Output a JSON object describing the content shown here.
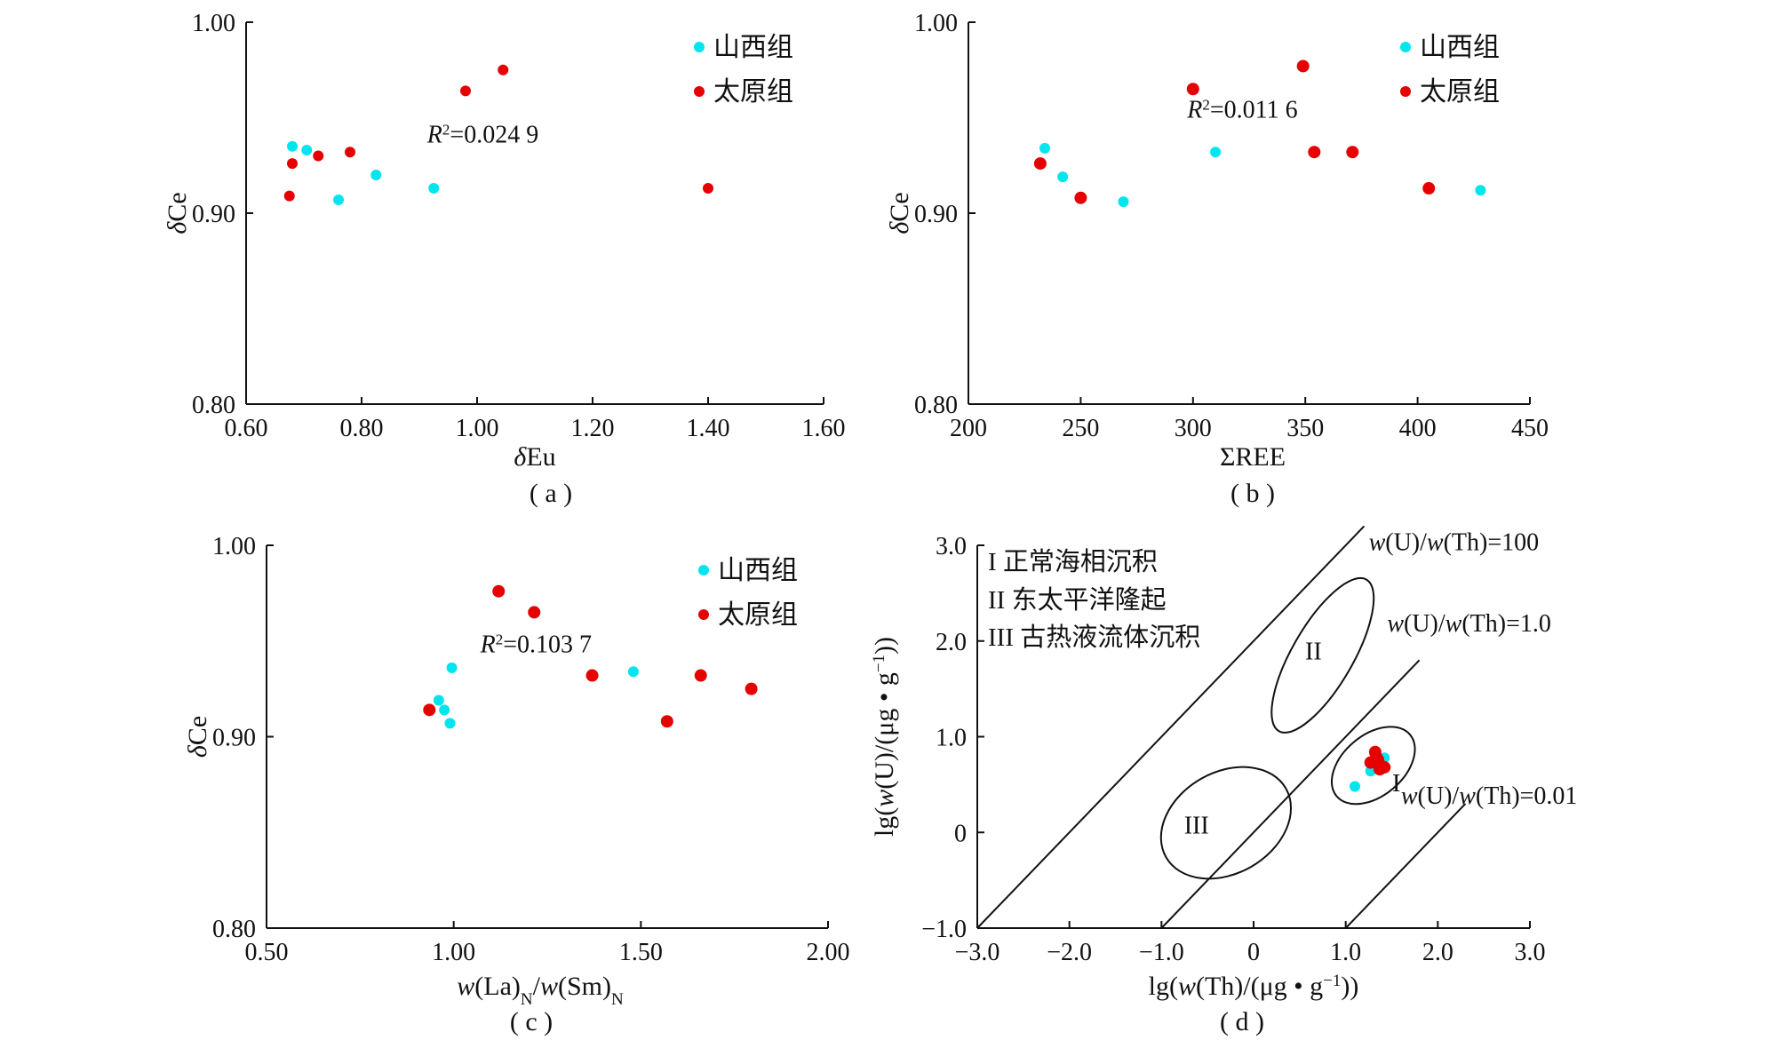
{
  "colors": {
    "shanxi": "#00e5ee",
    "taiyuan": "#e60000",
    "axis": "#111111"
  },
  "legend": {
    "shanxi": "山西组",
    "taiyuan": "太原组"
  },
  "chart_data": [
    {
      "id": "a",
      "type": "scatter",
      "caption": "( a )",
      "xlabel_parts": [
        {
          "t": "δ",
          "i": true
        },
        {
          "t": "Eu"
        }
      ],
      "ylabel_parts": [
        {
          "t": "δ",
          "i": true
        },
        {
          "t": "Ce"
        }
      ],
      "xlim": [
        0.6,
        1.6
      ],
      "ylim": [
        0.8,
        1.0
      ],
      "xticks": [
        "0.60",
        "0.80",
        "1.00",
        "1.20",
        "1.40",
        "1.60"
      ],
      "yticks": [
        "0.80",
        "0.90",
        "1.00"
      ],
      "annotation_parts": [
        {
          "t": "R",
          "i": true
        },
        {
          "t": "2",
          "sup": true
        },
        {
          "t": "=0.024 9"
        }
      ],
      "annotation_at": [
        1.01,
        0.937
      ],
      "legend": true,
      "series": [
        {
          "name": "山西组",
          "r": 6,
          "points": [
            [
              0.68,
              0.935
            ],
            [
              0.705,
              0.933
            ],
            [
              0.76,
              0.907
            ],
            [
              0.825,
              0.92
            ],
            [
              0.925,
              0.913
            ]
          ]
        },
        {
          "name": "太原组",
          "r": 6,
          "points": [
            [
              0.675,
              0.909
            ],
            [
              0.68,
              0.926
            ],
            [
              0.725,
              0.93
            ],
            [
              0.78,
              0.932
            ],
            [
              0.98,
              0.964
            ],
            [
              1.045,
              0.975
            ],
            [
              1.4,
              0.913
            ]
          ]
        }
      ]
    },
    {
      "id": "b",
      "type": "scatter",
      "caption": "( b )",
      "xlabel_parts": [
        {
          "t": "ΣREE"
        }
      ],
      "ylabel_parts": [
        {
          "t": "δ",
          "i": true
        },
        {
          "t": "Ce"
        }
      ],
      "xlim": [
        200,
        450
      ],
      "ylim": [
        0.8,
        1.0
      ],
      "xticks": [
        "200",
        "250",
        "300",
        "350",
        "400",
        "450"
      ],
      "yticks": [
        "0.80",
        "0.90",
        "1.00"
      ],
      "annotation_parts": [
        {
          "t": "R",
          "i": true
        },
        {
          "t": "2",
          "sup": true
        },
        {
          "t": "=0.011 6"
        }
      ],
      "annotation_at": [
        322,
        0.95
      ],
      "legend": true,
      "series": [
        {
          "name": "山西组",
          "r": 6,
          "points": [
            [
              234,
              0.934
            ],
            [
              242,
              0.919
            ],
            [
              269,
              0.906
            ],
            [
              310,
              0.932
            ],
            [
              428,
              0.912
            ]
          ]
        },
        {
          "name": "太原组",
          "r": 7,
          "points": [
            [
              232,
              0.926
            ],
            [
              250,
              0.908
            ],
            [
              300,
              0.965
            ],
            [
              349,
              0.977
            ],
            [
              354,
              0.932
            ],
            [
              371,
              0.932
            ],
            [
              405,
              0.913
            ]
          ]
        }
      ]
    },
    {
      "id": "c",
      "type": "scatter",
      "caption": "( c )",
      "xlabel_parts": [
        {
          "t": "w",
          "i": true
        },
        {
          "t": "(La)"
        },
        {
          "t": "N",
          "sub": true
        },
        {
          "t": "/"
        },
        {
          "t": "w",
          "i": true
        },
        {
          "t": "(Sm)"
        },
        {
          "t": "N",
          "sub": true
        }
      ],
      "ylabel_parts": [
        {
          "t": "δ",
          "i": true
        },
        {
          "t": "Ce"
        }
      ],
      "xlim": [
        0.5,
        2.0
      ],
      "ylim": [
        0.8,
        1.0
      ],
      "xticks": [
        "0.50",
        "1.00",
        "1.50",
        "2.00"
      ],
      "yticks": [
        "0.80",
        "0.90",
        "1.00"
      ],
      "annotation_parts": [
        {
          "t": "R",
          "i": true
        },
        {
          "t": "2",
          "sup": true
        },
        {
          "t": "=0.103 7"
        }
      ],
      "annotation_at": [
        1.22,
        0.944
      ],
      "legend": true,
      "series": [
        {
          "name": "山西组",
          "r": 6,
          "points": [
            [
              0.96,
              0.919
            ],
            [
              0.975,
              0.914
            ],
            [
              0.99,
              0.907
            ],
            [
              0.995,
              0.936
            ],
            [
              1.48,
              0.934
            ]
          ]
        },
        {
          "name": "太原组",
          "r": 7,
          "points": [
            [
              0.935,
              0.914
            ],
            [
              1.12,
              0.976
            ],
            [
              1.215,
              0.965
            ],
            [
              1.37,
              0.932
            ],
            [
              1.57,
              0.908
            ],
            [
              1.66,
              0.932
            ],
            [
              1.795,
              0.925
            ]
          ]
        }
      ]
    },
    {
      "id": "d",
      "type": "scatter",
      "caption": "( d )",
      "xlabel_parts": [
        {
          "t": "lg("
        },
        {
          "t": "w",
          "i": true
        },
        {
          "t": "(Th)/(μg • g"
        },
        {
          "t": "−1",
          "sup": true
        },
        {
          "t": "))"
        }
      ],
      "ylabel_parts": [
        {
          "t": "lg("
        },
        {
          "t": "w",
          "i": true
        },
        {
          "t": "(U)/(μg • g"
        },
        {
          "t": "−1",
          "sup": true
        },
        {
          "t": "))"
        }
      ],
      "xlim": [
        -3,
        3
      ],
      "ylim": [
        -1,
        3
      ],
      "xticks": [
        "−3.0",
        "−2.0",
        "−1.0",
        "0",
        "1.0",
        "2.0",
        "3.0"
      ],
      "yticks": [
        "−1.0",
        "0",
        "1.0",
        "2.0",
        "3.0"
      ],
      "legend": false,
      "key_lines": [
        "I 正常海相沉积",
        "II 东太平洋隆起",
        "III 古热液流体沉积"
      ],
      "ratio_lines": [
        {
          "label_parts": [
            {
              "t": "w",
              "i": true
            },
            {
              "t": "(U)/"
            },
            {
              "t": "w",
              "i": true
            },
            {
              "t": "(Th)=100"
            }
          ],
          "offset": 2,
          "x_range": [
            -3,
            1.2
          ],
          "label_at": [
            1.25,
            2.95
          ]
        },
        {
          "label_parts": [
            {
              "t": "w",
              "i": true
            },
            {
              "t": "(U)/"
            },
            {
              "t": "w",
              "i": true
            },
            {
              "t": "(Th)=1.0"
            }
          ],
          "offset": 0,
          "x_range": [
            -1,
            1.8
          ],
          "label_at": [
            1.45,
            2.1
          ]
        },
        {
          "label_parts": [
            {
              "t": "w",
              "i": true
            },
            {
              "t": "(U)/"
            },
            {
              "t": "w",
              "i": true
            },
            {
              "t": "(Th)=0.01"
            }
          ],
          "offset": -2,
          "x_range": [
            1,
            2.3
          ],
          "label_at": [
            1.6,
            0.3
          ]
        }
      ],
      "regions": [
        {
          "label": "I",
          "center": [
            1.3,
            0.7
          ],
          "rx": 0.52,
          "ry": 0.33,
          "rotate": -40,
          "label_at": [
            1.55,
            0.52
          ]
        },
        {
          "label": "II",
          "center": [
            0.75,
            1.85
          ],
          "rx": 0.95,
          "ry": 0.33,
          "rotate": -60,
          "label_at": [
            0.65,
            1.9
          ]
        },
        {
          "label": "III",
          "center": [
            -0.3,
            0.1
          ],
          "rx": 0.75,
          "ry": 0.55,
          "rotate": -30,
          "label_at": [
            -0.62,
            0.08
          ]
        }
      ],
      "series": [
        {
          "name": "山西组",
          "r": 6,
          "points": [
            [
              1.1,
              0.48
            ],
            [
              1.27,
              0.64
            ],
            [
              1.42,
              0.78
            ],
            [
              1.3,
              0.7
            ]
          ]
        },
        {
          "name": "太原组",
          "r": 7,
          "points": [
            [
              1.32,
              0.84
            ],
            [
              1.35,
              0.76
            ],
            [
              1.38,
              0.7
            ],
            [
              1.27,
              0.73
            ],
            [
              1.42,
              0.68
            ],
            [
              1.33,
              0.79
            ],
            [
              1.37,
              0.66
            ]
          ]
        }
      ]
    }
  ]
}
